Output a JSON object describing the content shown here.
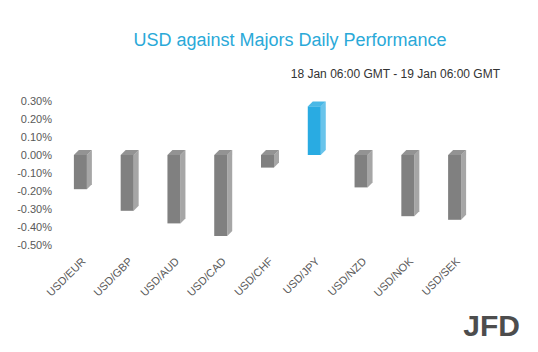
{
  "chart_data": {
    "type": "bar",
    "title": "USD against Majors Daily Performance",
    "subtitle": "18 Jan 06:00 GMT - 19 Jan 06:00 GMT",
    "categories": [
      "USD/EUR",
      "USD/GBP",
      "USD/AUD",
      "USD/CAD",
      "USD/CHF",
      "USD/JPY",
      "USD/NZD",
      "USD/NOK",
      "USD/SEK"
    ],
    "values": [
      -0.19,
      -0.31,
      -0.38,
      -0.45,
      -0.07,
      0.27,
      -0.18,
      -0.34,
      -0.36
    ],
    "colors": [
      "#808080",
      "#808080",
      "#808080",
      "#808080",
      "#808080",
      "#29abe2",
      "#808080",
      "#808080",
      "#808080"
    ],
    "ylim": [
      -0.5,
      0.3
    ],
    "yticks": [
      {
        "value": 0.3,
        "label": "0.30%"
      },
      {
        "value": 0.2,
        "label": "0.20%"
      },
      {
        "value": 0.1,
        "label": "0.10%"
      },
      {
        "value": 0,
        "label": "0.00%"
      },
      {
        "value": -0.1,
        "label": "-0.10%"
      },
      {
        "value": -0.2,
        "label": "-0.20%"
      },
      {
        "value": -0.3,
        "label": "-0.30%"
      },
      {
        "value": -0.4,
        "label": "-0.40%"
      },
      {
        "value": -0.5,
        "label": "-0.50%"
      }
    ],
    "grid": false,
    "annotations": [
      "JFD"
    ]
  }
}
